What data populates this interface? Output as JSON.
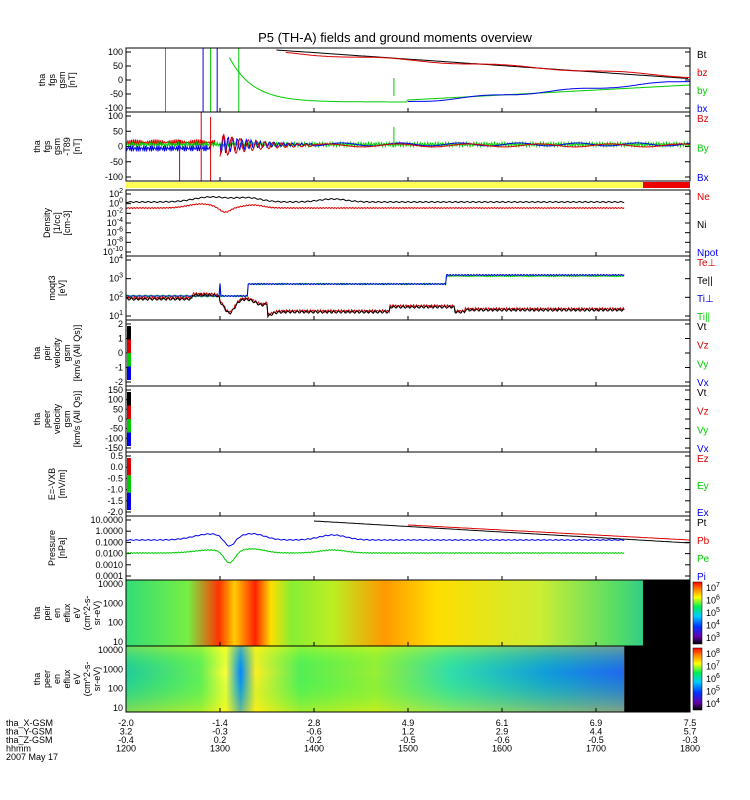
{
  "title": "P5 (TH-A) fields and ground moments overview",
  "colors": {
    "black": "#000000",
    "red": "#dd0000",
    "green": "#00cc00",
    "blue": "#0000ee",
    "yellow": "#ffff55",
    "bar_red": "#ee0000"
  },
  "chart_data": [
    {
      "type": "line",
      "name": "fgs",
      "ylabel": [
        "tha",
        "fgs",
        "gsm",
        "[nT]"
      ],
      "yticks": [
        "100",
        "50",
        "0",
        "-50",
        "-100"
      ],
      "ylim": [
        -110,
        110
      ],
      "legend": [
        {
          "label": "Bt",
          "color": "#000000"
        },
        {
          "label": "bz",
          "color": "#dd0000"
        },
        {
          "label": "by",
          "color": "#00cc00"
        },
        {
          "label": "bx",
          "color": "#0000ee"
        }
      ]
    },
    {
      "type": "line",
      "name": "fgs-sm",
      "ylabel": [
        "tha",
        "fgs",
        "gsm",
        "-T89",
        "[nT]"
      ],
      "yticks": [
        "100",
        "50",
        "0",
        "-50",
        "-100"
      ],
      "ylim": [
        -120,
        110
      ],
      "legend": [
        {
          "label": "Bz",
          "color": "#dd0000"
        },
        {
          "label": "By",
          "color": "#00cc00"
        },
        {
          "label": "Bx",
          "color": "#0000ee"
        }
      ]
    },
    {
      "type": "line",
      "name": "density",
      "ylabel": [
        "Density",
        "[1/cc]",
        "[cm-3]"
      ],
      "yticks": [
        "10^2",
        "10^0",
        "10^-2",
        "10^-4",
        "10^-6",
        "10^-8",
        "10^-10"
      ],
      "scale": "log",
      "legend": [
        {
          "label": "Ne",
          "color": "#dd0000"
        },
        {
          "label": "Ni",
          "color": "#000000"
        },
        {
          "label": "Npot",
          "color": "#0000ee"
        }
      ]
    },
    {
      "type": "line",
      "name": "temperature",
      "ylabel": [
        "moqt3",
        "[eV]"
      ],
      "yticks": [
        "10^4",
        "10^3",
        "10^2",
        "10^1"
      ],
      "scale": "log",
      "legend": [
        {
          "label": "Te⊥",
          "color": "#dd0000"
        },
        {
          "label": "Te||",
          "color": "#000000"
        },
        {
          "label": "Ti⊥",
          "color": "#0000ee"
        },
        {
          "label": "Ti||",
          "color": "#00cc00"
        }
      ]
    },
    {
      "type": "line",
      "name": "ion-velocity",
      "ylabel": [
        "tha",
        "peir",
        "velocity",
        "gsm",
        "[km/s (All Qs)]"
      ],
      "yticks": [
        "2",
        "1",
        "0",
        "-1",
        "-2"
      ],
      "legend": [
        {
          "label": "Vt",
          "color": "#000000"
        },
        {
          "label": "Vz",
          "color": "#dd0000"
        },
        {
          "label": "Vy",
          "color": "#00cc00"
        },
        {
          "label": "Vx",
          "color": "#0000ee"
        }
      ]
    },
    {
      "type": "line",
      "name": "electron-velocity",
      "ylabel": [
        "tha",
        "peer",
        "velocity",
        "gsm",
        "[km/s (All Qs)]"
      ],
      "yticks": [
        "150",
        "100",
        "50",
        "0",
        "-50",
        "-100",
        "-150"
      ],
      "legend": [
        {
          "label": "Vt",
          "color": "#000000"
        },
        {
          "label": "Vz",
          "color": "#dd0000"
        },
        {
          "label": "Vy",
          "color": "#00cc00"
        },
        {
          "label": "Vx",
          "color": "#0000ee"
        }
      ]
    },
    {
      "type": "line",
      "name": "efield",
      "ylabel": [
        "E=-VXB",
        "[mV/m]"
      ],
      "yticks": [
        "0.5",
        "0.0",
        "-0.5",
        "-1.0",
        "-1.5",
        "-2.0"
      ],
      "legend": [
        {
          "label": "Ez",
          "color": "#dd0000"
        },
        {
          "label": "Ey",
          "color": "#00cc00"
        },
        {
          "label": "Ex",
          "color": "#0000ee"
        }
      ]
    },
    {
      "type": "line",
      "name": "pressure",
      "ylabel": [
        "Pressure",
        "[nPa]"
      ],
      "yticks": [
        "10.0000",
        "1.0000",
        "0.1000",
        "0.0100",
        "0.0010",
        "0.0001"
      ],
      "scale": "log",
      "legend": [
        {
          "label": "Pt",
          "color": "#000000"
        },
        {
          "label": "Pb",
          "color": "#dd0000"
        },
        {
          "label": "Pe",
          "color": "#00cc00"
        },
        {
          "label": "Pi",
          "color": "#0000ee"
        }
      ]
    },
    {
      "type": "heatmap",
      "name": "ion-spectrogram",
      "ylabel": [
        "tha",
        "peir",
        "en",
        "eflux",
        "eV",
        "(cm^2-s-",
        "sr-eV)"
      ],
      "yticks": [
        "10000",
        "1000",
        "100",
        "10"
      ],
      "scale": "log",
      "colorbar": [
        "10^7",
        "10^6",
        "10^5",
        "10^4",
        "10^3"
      ]
    },
    {
      "type": "heatmap",
      "name": "electron-spectrogram",
      "ylabel": [
        "tha",
        "peer",
        "en",
        "eflux",
        "eV",
        "(cm^2-s-",
        "sr-eV)"
      ],
      "yticks": [
        "10000",
        "1000",
        "100",
        "10"
      ],
      "scale": "log",
      "colorbar": [
        "10^8",
        "10^7",
        "10^6",
        "10^5",
        "10^4"
      ]
    }
  ],
  "xaxis": {
    "rows": [
      {
        "label": "tha_X-GSM",
        "values": [
          "-2.0",
          "-1.4",
          "2.8",
          "4.9",
          "6.1",
          "6.9",
          "7.5"
        ]
      },
      {
        "label": "tha_Y-GSM",
        "values": [
          "3.2",
          "-0.3",
          "-0.6",
          "1.2",
          "2.9",
          "4.4",
          "5.7"
        ]
      },
      {
        "label": "tha_Z-GSM",
        "values": [
          "-0.4",
          "0.2",
          "-0.2",
          "-0.5",
          "-0.6",
          "-0.5",
          "-0.3"
        ]
      },
      {
        "label": "hhmm",
        "values": [
          "1200",
          "1300",
          "1400",
          "1500",
          "1600",
          "1700",
          "1800"
        ]
      }
    ],
    "date": "2007 May 17",
    "time_range": [
      1200,
      1800
    ]
  }
}
